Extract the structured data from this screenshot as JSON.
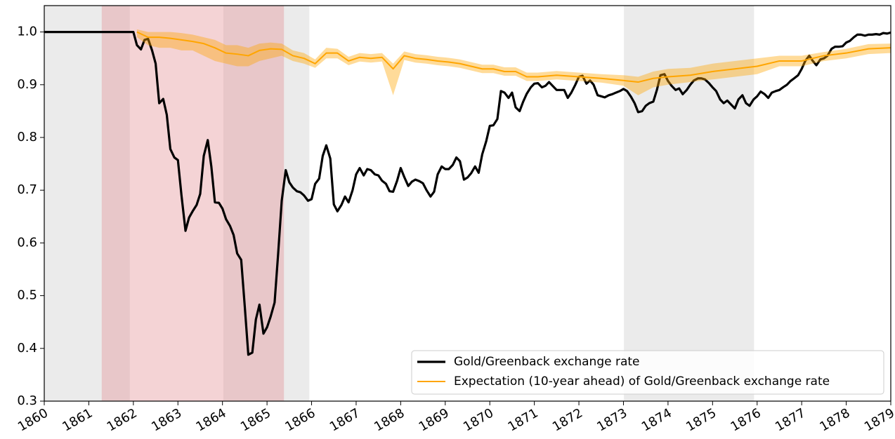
{
  "chart_data": {
    "type": "line",
    "xlim": [
      1860,
      1879
    ],
    "ylim": [
      0.3,
      1.05
    ],
    "xticks": [
      1860,
      1861,
      1862,
      1863,
      1864,
      1865,
      1866,
      1867,
      1868,
      1869,
      1870,
      1871,
      1872,
      1873,
      1874,
      1875,
      1876,
      1877,
      1878,
      1879
    ],
    "yticks": [
      0.3,
      0.4,
      0.5,
      0.6,
      0.7,
      0.8,
      0.9,
      {
        "value": 1,
        "label": "1.0"
      }
    ],
    "legend": "lower right",
    "shaded_regions": [
      {
        "x": [
          1860,
          1861.92
        ],
        "color": "#b0b0b0",
        "opacity": 0.25
      },
      {
        "x": [
          1864.02,
          1865.95
        ],
        "color": "#b0b0b0",
        "opacity": 0.25
      },
      {
        "x": [
          1873.01,
          1875.93
        ],
        "color": "#b0b0b0",
        "opacity": 0.25
      },
      {
        "x": [
          1861.29,
          1865.38
        ],
        "color": "#e39196",
        "opacity": 0.4
      }
    ],
    "series": [
      {
        "name": "Gold/Greenback exchange rate",
        "color": "#000000",
        "x": [
          1860,
          1862,
          1862.08,
          1862.17,
          1862.25,
          1862.33,
          1862.42,
          1862.5,
          1862.58,
          1862.67,
          1862.75,
          1862.83,
          1862.92,
          1863,
          1863.08,
          1863.17,
          1863.25,
          1863.33,
          1863.42,
          1863.5,
          1863.58,
          1863.67,
          1863.75,
          1863.83,
          1863.92,
          1864,
          1864.08,
          1864.17,
          1864.25,
          1864.33,
          1864.42,
          1864.5,
          1864.58,
          1864.67,
          1864.75,
          1864.83,
          1864.92,
          1865,
          1865.08,
          1865.17,
          1865.25,
          1865.33,
          1865.42,
          1865.5,
          1865.58,
          1865.67,
          1865.75,
          1865.83,
          1865.92,
          1866,
          1866.08,
          1866.17,
          1866.25,
          1866.33,
          1866.42,
          1866.5,
          1866.58,
          1866.67,
          1866.75,
          1866.83,
          1866.92,
          1867,
          1867.08,
          1867.17,
          1867.25,
          1867.33,
          1867.42,
          1867.5,
          1867.58,
          1867.67,
          1867.75,
          1867.83,
          1867.92,
          1868,
          1868.08,
          1868.17,
          1868.25,
          1868.33,
          1868.42,
          1868.5,
          1868.58,
          1868.67,
          1868.75,
          1868.83,
          1868.92,
          1869,
          1869.08,
          1869.17,
          1869.25,
          1869.33,
          1869.42,
          1869.5,
          1869.58,
          1869.67,
          1869.75,
          1869.83,
          1869.92,
          1870,
          1870.08,
          1870.17,
          1870.25,
          1870.33,
          1870.42,
          1870.5,
          1870.58,
          1870.67,
          1870.75,
          1870.83,
          1870.92,
          1871,
          1871.08,
          1871.17,
          1871.25,
          1871.33,
          1871.42,
          1871.5,
          1871.58,
          1871.67,
          1871.75,
          1871.83,
          1871.92,
          1872,
          1872.08,
          1872.17,
          1872.25,
          1872.33,
          1872.42,
          1872.5,
          1872.58,
          1872.67,
          1872.75,
          1872.83,
          1872.92,
          1873,
          1873.08,
          1873.17,
          1873.25,
          1873.33,
          1873.42,
          1873.5,
          1873.58,
          1873.67,
          1873.75,
          1873.83,
          1873.92,
          1874,
          1874.08,
          1874.17,
          1874.25,
          1874.33,
          1874.42,
          1874.5,
          1874.58,
          1874.67,
          1874.75,
          1874.83,
          1874.92,
          1875,
          1875.08,
          1875.17,
          1875.25,
          1875.33,
          1875.42,
          1875.5,
          1875.58,
          1875.67,
          1875.75,
          1875.83,
          1875.92,
          1876,
          1876.08,
          1876.17,
          1876.25,
          1876.33,
          1876.42,
          1876.5,
          1876.58,
          1876.67,
          1876.75,
          1876.83,
          1876.92,
          1877,
          1877.08,
          1877.17,
          1877.25,
          1877.33,
          1877.42,
          1877.5,
          1877.58,
          1877.67,
          1877.75,
          1877.83,
          1877.92,
          1878,
          1878.08,
          1878.17,
          1878.25,
          1878.33,
          1878.42,
          1878.5,
          1878.58,
          1878.67,
          1878.75,
          1878.83,
          1878.92,
          1879
        ],
        "values": [
          1.0,
          1.0,
          0.975,
          0.967,
          0.985,
          0.987,
          0.965,
          0.94,
          0.865,
          0.873,
          0.843,
          0.778,
          0.762,
          0.757,
          0.69,
          0.623,
          0.648,
          0.66,
          0.672,
          0.693,
          0.765,
          0.795,
          0.745,
          0.677,
          0.676,
          0.665,
          0.645,
          0.632,
          0.615,
          0.58,
          0.568,
          0.48,
          0.388,
          0.392,
          0.455,
          0.483,
          0.428,
          0.44,
          0.46,
          0.487,
          0.58,
          0.68,
          0.738,
          0.715,
          0.705,
          0.698,
          0.696,
          0.69,
          0.68,
          0.683,
          0.712,
          0.722,
          0.765,
          0.785,
          0.76,
          0.673,
          0.66,
          0.672,
          0.688,
          0.677,
          0.7,
          0.73,
          0.742,
          0.728,
          0.74,
          0.738,
          0.73,
          0.728,
          0.718,
          0.712,
          0.698,
          0.697,
          0.718,
          0.742,
          0.725,
          0.708,
          0.716,
          0.72,
          0.717,
          0.713,
          0.7,
          0.688,
          0.697,
          0.73,
          0.745,
          0.74,
          0.74,
          0.748,
          0.762,
          0.755,
          0.72,
          0.724,
          0.732,
          0.745,
          0.733,
          0.768,
          0.793,
          0.822,
          0.823,
          0.835,
          0.888,
          0.885,
          0.875,
          0.885,
          0.857,
          0.85,
          0.868,
          0.883,
          0.895,
          0.902,
          0.903,
          0.895,
          0.898,
          0.905,
          0.897,
          0.89,
          0.89,
          0.89,
          0.875,
          0.885,
          0.9,
          0.915,
          0.917,
          0.902,
          0.908,
          0.9,
          0.88,
          0.878,
          0.876,
          0.88,
          0.882,
          0.885,
          0.888,
          0.892,
          0.888,
          0.877,
          0.865,
          0.848,
          0.85,
          0.86,
          0.865,
          0.868,
          0.89,
          0.918,
          0.92,
          0.907,
          0.898,
          0.89,
          0.893,
          0.882,
          0.89,
          0.9,
          0.908,
          0.912,
          0.912,
          0.91,
          0.903,
          0.895,
          0.888,
          0.872,
          0.865,
          0.87,
          0.862,
          0.855,
          0.872,
          0.88,
          0.865,
          0.86,
          0.872,
          0.878,
          0.887,
          0.882,
          0.875,
          0.885,
          0.888,
          0.89,
          0.895,
          0.9,
          0.907,
          0.912,
          0.918,
          0.93,
          0.945,
          0.955,
          0.945,
          0.937,
          0.948,
          0.95,
          0.955,
          0.968,
          0.972,
          0.972,
          0.973,
          0.98,
          0.983,
          0.99,
          0.995,
          0.995,
          0.993,
          0.995,
          0.995,
          0.996,
          0.995,
          0.998,
          0.997,
          0.999
        ]
      },
      {
        "name": "Expectation (10-year ahead) of Gold/Greenback exchange rate",
        "color": "#ffa500",
        "band_color": "#ffa500",
        "x": [
          1862.08,
          1862.33,
          1862.58,
          1862.83,
          1863.08,
          1863.33,
          1863.58,
          1863.83,
          1864.08,
          1864.33,
          1864.58,
          1864.83,
          1865.08,
          1865.33,
          1865.58,
          1865.83,
          1866.08,
          1866.33,
          1866.58,
          1866.83,
          1867.08,
          1867.33,
          1867.58,
          1867.83,
          1868.08,
          1868.33,
          1868.58,
          1868.83,
          1869.08,
          1869.33,
          1869.58,
          1869.83,
          1870.08,
          1870.33,
          1870.58,
          1870.83,
          1871.08,
          1871.5,
          1872,
          1872.5,
          1873,
          1873.33,
          1873.67,
          1874,
          1874.5,
          1875,
          1875.5,
          1876,
          1876.5,
          1877,
          1877.5,
          1878,
          1878.5,
          1879
        ],
        "values": [
          1.0,
          0.99,
          0.99,
          0.988,
          0.985,
          0.982,
          0.978,
          0.97,
          0.96,
          0.958,
          0.955,
          0.965,
          0.968,
          0.967,
          0.955,
          0.95,
          0.94,
          0.96,
          0.96,
          0.945,
          0.952,
          0.95,
          0.952,
          0.93,
          0.955,
          0.95,
          0.948,
          0.945,
          0.943,
          0.94,
          0.935,
          0.93,
          0.93,
          0.925,
          0.925,
          0.915,
          0.915,
          0.918,
          0.915,
          0.912,
          0.908,
          0.905,
          0.912,
          0.915,
          0.918,
          0.925,
          0.93,
          0.935,
          0.945,
          0.945,
          0.955,
          0.96,
          0.968,
          0.97
        ],
        "lower": [
          0.99,
          0.975,
          0.97,
          0.97,
          0.965,
          0.965,
          0.955,
          0.945,
          0.94,
          0.935,
          0.935,
          0.945,
          0.95,
          0.955,
          0.945,
          0.94,
          0.932,
          0.95,
          0.95,
          0.937,
          0.944,
          0.942,
          0.944,
          0.88,
          0.947,
          0.942,
          0.94,
          0.937,
          0.935,
          0.932,
          0.927,
          0.922,
          0.922,
          0.917,
          0.917,
          0.907,
          0.907,
          0.91,
          0.907,
          0.904,
          0.898,
          0.88,
          0.895,
          0.9,
          0.905,
          0.91,
          0.915,
          0.92,
          0.935,
          0.935,
          0.945,
          0.95,
          0.958,
          0.96
        ],
        "upper": [
          1.005,
          1.0,
          1.0,
          1.0,
          0.998,
          0.995,
          0.99,
          0.985,
          0.975,
          0.975,
          0.97,
          0.978,
          0.98,
          0.978,
          0.965,
          0.96,
          0.948,
          0.97,
          0.968,
          0.953,
          0.96,
          0.958,
          0.96,
          0.94,
          0.963,
          0.958,
          0.956,
          0.953,
          0.951,
          0.948,
          0.943,
          0.938,
          0.938,
          0.933,
          0.933,
          0.923,
          0.923,
          0.926,
          0.923,
          0.92,
          0.918,
          0.915,
          0.925,
          0.93,
          0.932,
          0.94,
          0.945,
          0.95,
          0.955,
          0.955,
          0.962,
          0.968,
          0.977,
          0.978
        ]
      }
    ]
  }
}
